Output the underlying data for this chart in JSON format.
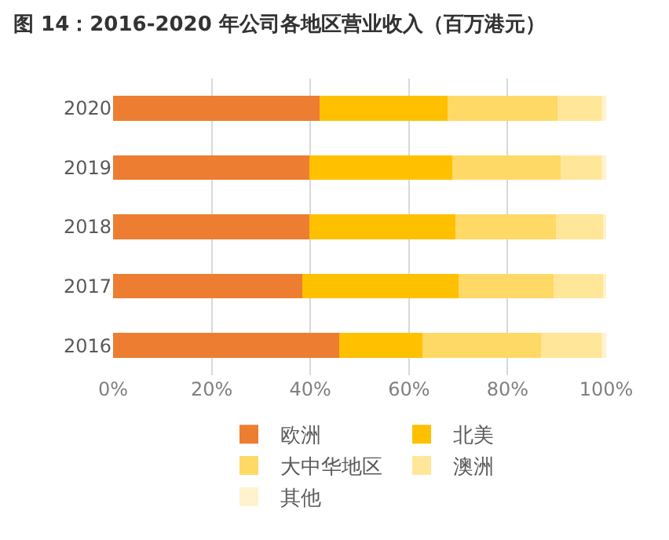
{
  "chart_data": {
    "type": "bar",
    "title": "图 14：2016-2020 年公司各地区营业收入（百万港元）",
    "orientation": "horizontal",
    "stacked": true,
    "categories": [
      "2020",
      "2019",
      "2018",
      "2017",
      "2016"
    ],
    "series": [
      {
        "name": "欧洲",
        "color": "#ed7d31",
        "values": [
          41.8,
          39.8,
          39.8,
          38.4,
          45.8
        ]
      },
      {
        "name": "北美",
        "color": "#ffc000",
        "values": [
          26.0,
          29.0,
          29.6,
          31.7,
          16.9
        ]
      },
      {
        "name": "大中华地区",
        "color": "#ffd966",
        "values": [
          22.3,
          22.0,
          20.4,
          19.3,
          24.1
        ]
      },
      {
        "name": "澳洲",
        "color": "#ffe699",
        "values": [
          9.0,
          8.3,
          9.5,
          9.9,
          12.3
        ]
      },
      {
        "name": "其他",
        "color": "#fff2cc",
        "values": [
          0.9,
          0.9,
          0.7,
          0.7,
          0.9
        ]
      }
    ],
    "xlim": [
      0,
      100
    ],
    "xticks": [
      {
        "value": 0,
        "label": "0%"
      },
      {
        "value": 20,
        "label": "20%"
      },
      {
        "value": 40,
        "label": "40%"
      },
      {
        "value": 60,
        "label": "60%"
      },
      {
        "value": 80,
        "label": "80%"
      },
      {
        "value": 100,
        "label": "100%"
      }
    ],
    "grid": "x",
    "legend": "bottom"
  }
}
